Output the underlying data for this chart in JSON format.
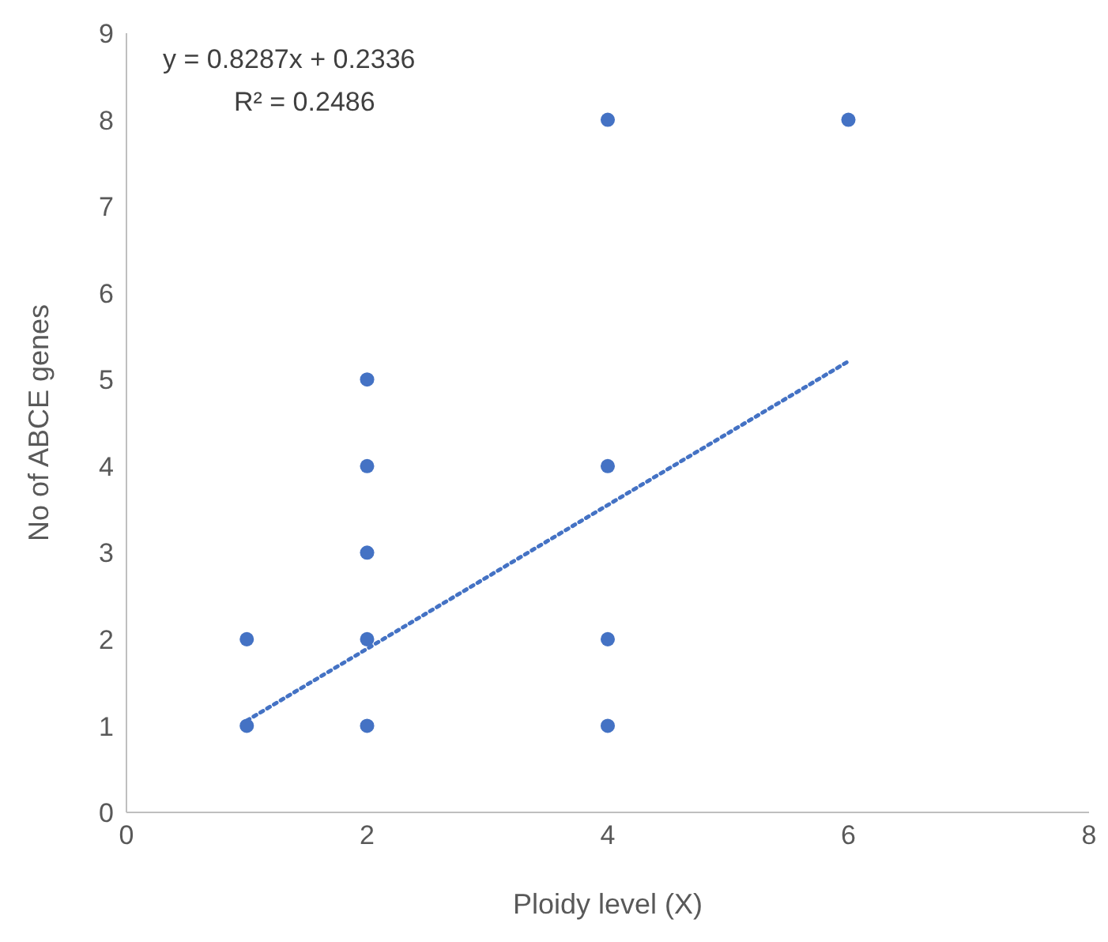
{
  "chart_data": {
    "type": "scatter",
    "xlabel": "Ploidy level (X)",
    "ylabel": "No of ABCE genes",
    "annotations": [
      "y = 0.8287x + 0.2336",
      "R² = 0.2486"
    ],
    "series": [
      {
        "color": "#4472c4",
        "x": [
          1,
          1,
          2,
          2,
          2,
          2,
          2,
          4,
          4,
          4,
          4,
          6
        ],
        "values": [
          1,
          2,
          1,
          2,
          3,
          4,
          5,
          1,
          2,
          4,
          8,
          8
        ],
        "marker": "circle"
      },
      {
        "type": "line",
        "color": "#4472c4",
        "x": [
          1,
          6
        ],
        "values": [
          1.06,
          5.21
        ],
        "line_style": "dotted",
        "marker": "none"
      }
    ],
    "xlim": [
      0,
      8
    ],
    "xticks": [
      0,
      2,
      4,
      6,
      8
    ],
    "ylim": [
      0,
      9
    ],
    "yticks": [
      0,
      1,
      2,
      3,
      4,
      5,
      6,
      7,
      8,
      9
    ],
    "grid": false
  }
}
